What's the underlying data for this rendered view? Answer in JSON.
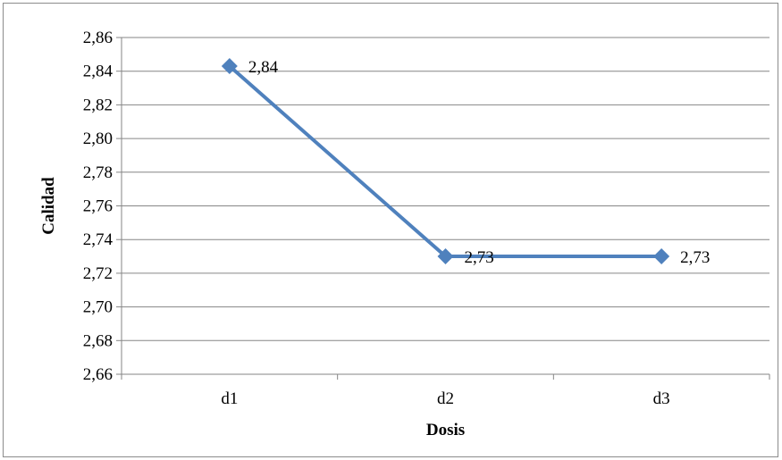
{
  "chart_data": {
    "type": "line",
    "categories": [
      "d1",
      "d2",
      "d3"
    ],
    "series": [
      {
        "values": [
          2.843,
          2.73,
          2.73
        ],
        "data_labels": [
          "2,84",
          "2,73",
          "2,73"
        ],
        "color": "#4f81bd"
      }
    ],
    "xlabel": "Dosis",
    "ylabel": "Calidad",
    "ylim": [
      2.66,
      2.86
    ],
    "y_ticks": [
      "2,66",
      "2,68",
      "2,70",
      "2,72",
      "2,74",
      "2,76",
      "2,78",
      "2,80",
      "2,82",
      "2,84",
      "2,86"
    ],
    "gridlines": true,
    "legend": "none",
    "colors": {
      "series": "#4f81bd",
      "grid": "#868686",
      "axis": "#868686"
    }
  }
}
